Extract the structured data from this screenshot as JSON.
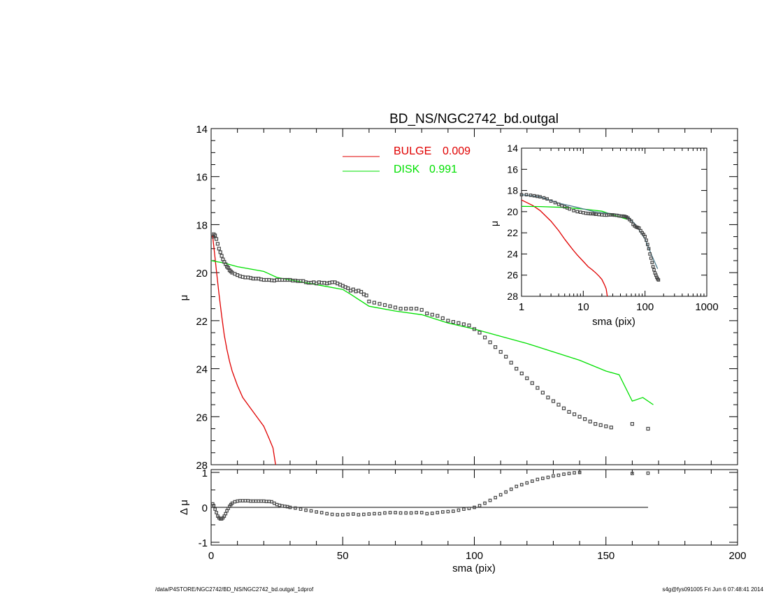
{
  "chart_data": [
    {
      "type": "scatter",
      "title": "BD_NS/NGC2742_bd.outgal",
      "ylabel": "μ",
      "xlim": [
        0,
        200
      ],
      "ylim": [
        28,
        14
      ],
      "yticks": [
        14,
        16,
        18,
        20,
        22,
        24,
        26,
        28
      ],
      "legend_placement": "top",
      "legend": [
        {
          "label": "BULGE",
          "value": "0.009",
          "color": "#e00000"
        },
        {
          "label": "DISK",
          "value": "0.991",
          "color": "#00e000"
        }
      ],
      "series": [
        {
          "name": "BULGE",
          "style": "line",
          "color": "#e00000",
          "x": [
            0.5,
            1,
            2,
            3,
            4,
            5,
            6,
            7,
            8,
            10,
            12,
            14,
            16,
            18,
            20,
            22,
            23.5,
            24.5
          ],
          "y": [
            18.4,
            18.9,
            19.9,
            20.9,
            21.8,
            22.6,
            23.2,
            23.7,
            24.1,
            24.7,
            25.2,
            25.5,
            25.8,
            26.1,
            26.4,
            26.9,
            27.3,
            28.0
          ]
        },
        {
          "name": "DISK",
          "style": "line",
          "color": "#00e000",
          "x": [
            0,
            5,
            10,
            20,
            25,
            30,
            40,
            50,
            53,
            60,
            70,
            80,
            90,
            100,
            110,
            120,
            130,
            140,
            150,
            155,
            160,
            164,
            168
          ],
          "y": [
            19.5,
            19.6,
            19.75,
            19.95,
            20.2,
            20.3,
            20.5,
            20.7,
            20.9,
            21.4,
            21.6,
            21.75,
            22.1,
            22.35,
            22.65,
            22.95,
            23.3,
            23.65,
            24.1,
            24.25,
            25.35,
            25.2,
            25.5
          ]
        },
        {
          "name": "data",
          "style": "markers",
          "color": "#444444",
          "x": [
            0.6,
            1,
            1.5,
            2,
            2.5,
            3,
            3.5,
            4,
            4.5,
            5,
            5.5,
            6,
            6.5,
            7,
            7.5,
            8,
            9,
            10,
            11,
            12,
            13,
            14,
            15,
            16,
            17,
            18,
            19,
            20,
            21,
            22,
            23,
            24,
            25,
            26,
            27,
            28,
            29,
            30,
            31,
            32,
            33,
            34,
            35,
            36,
            37,
            38,
            39,
            40,
            41,
            42,
            43,
            44,
            45,
            46,
            47,
            48,
            49,
            50,
            51,
            52,
            53,
            54,
            55,
            56,
            57,
            58,
            59,
            60,
            62,
            64,
            66,
            68,
            70,
            72,
            74,
            76,
            78,
            80,
            82,
            84,
            86,
            88,
            90,
            92,
            94,
            96,
            98,
            100,
            102,
            104,
            106,
            108,
            110,
            112,
            114,
            116,
            118,
            120,
            122,
            124,
            126,
            128,
            130,
            132,
            134,
            136,
            138,
            140,
            142,
            144,
            146,
            148,
            150,
            152,
            160,
            166
          ],
          "y": [
            18.5,
            18.4,
            18.45,
            18.6,
            18.8,
            19.0,
            19.15,
            19.3,
            19.45,
            19.55,
            19.65,
            19.75,
            19.8,
            19.9,
            19.95,
            20.0,
            20.05,
            20.1,
            20.15,
            20.18,
            20.2,
            20.2,
            20.22,
            20.25,
            20.25,
            20.25,
            20.28,
            20.3,
            20.3,
            20.3,
            20.32,
            20.33,
            20.3,
            20.3,
            20.3,
            20.3,
            20.3,
            20.3,
            20.33,
            20.33,
            20.35,
            20.35,
            20.35,
            20.4,
            20.42,
            20.42,
            20.4,
            20.45,
            20.4,
            20.42,
            20.42,
            20.45,
            20.42,
            20.4,
            20.4,
            20.45,
            20.5,
            20.55,
            20.6,
            20.65,
            20.75,
            20.7,
            20.78,
            20.75,
            20.8,
            20.9,
            20.95,
            21.2,
            21.25,
            21.3,
            21.35,
            21.4,
            21.45,
            21.5,
            21.5,
            21.5,
            21.5,
            21.55,
            21.7,
            21.75,
            21.8,
            21.9,
            22.0,
            22.05,
            22.1,
            22.15,
            22.2,
            22.35,
            22.5,
            22.7,
            22.9,
            23.1,
            23.3,
            23.5,
            23.75,
            24.0,
            24.2,
            24.4,
            24.6,
            24.8,
            25.0,
            25.2,
            25.35,
            25.5,
            25.65,
            25.8,
            25.9,
            26.0,
            26.1,
            26.2,
            26.3,
            26.35,
            26.4,
            26.45,
            26.3,
            26.5
          ]
        }
      ]
    },
    {
      "type": "scatter",
      "xlabel": "sma (pix)",
      "ylabel": "Δ μ",
      "xlim": [
        0,
        200
      ],
      "ylim": [
        -1,
        1
      ],
      "xticks": [
        0,
        50,
        100,
        150,
        200
      ],
      "yticks": [
        -1,
        0,
        1
      ],
      "reference_line": {
        "y": 0,
        "x_range": [
          1,
          166
        ]
      },
      "series": [
        {
          "name": "residual",
          "style": "markers",
          "color": "#444444",
          "x": [
            0.6,
            1,
            1.5,
            2,
            2.5,
            3,
            3.5,
            4,
            4.5,
            5,
            5.5,
            6,
            6.5,
            7,
            7.5,
            8,
            9,
            10,
            11,
            12,
            13,
            14,
            15,
            16,
            17,
            18,
            19,
            20,
            21,
            22,
            23,
            24,
            25,
            26,
            27,
            28,
            29,
            30,
            32,
            34,
            36,
            38,
            40,
            42,
            44,
            46,
            48,
            50,
            52,
            54,
            56,
            58,
            60,
            62,
            64,
            66,
            68,
            70,
            72,
            74,
            76,
            78,
            80,
            82,
            84,
            86,
            88,
            90,
            92,
            94,
            96,
            98,
            100,
            102,
            104,
            106,
            108,
            110,
            112,
            114,
            116,
            118,
            120,
            122,
            124,
            126,
            128,
            130,
            132,
            134,
            136,
            138,
            140,
            160,
            166
          ],
          "y": [
            0.1,
            0.05,
            -0.05,
            -0.15,
            -0.25,
            -0.3,
            -0.33,
            -0.33,
            -0.3,
            -0.25,
            -0.18,
            -0.1,
            -0.03,
            0.03,
            0.08,
            0.12,
            0.16,
            0.18,
            0.19,
            0.19,
            0.19,
            0.19,
            0.18,
            0.18,
            0.18,
            0.18,
            0.18,
            0.18,
            0.17,
            0.17,
            0.16,
            0.12,
            0.08,
            0.06,
            0.04,
            0.03,
            0.02,
            0.0,
            -0.02,
            -0.05,
            -0.08,
            -0.1,
            -0.13,
            -0.15,
            -0.18,
            -0.2,
            -0.21,
            -0.21,
            -0.2,
            -0.19,
            -0.21,
            -0.2,
            -0.19,
            -0.18,
            -0.18,
            -0.16,
            -0.15,
            -0.15,
            -0.16,
            -0.16,
            -0.16,
            -0.15,
            -0.15,
            -0.18,
            -0.17,
            -0.15,
            -0.13,
            -0.12,
            -0.11,
            -0.08,
            -0.05,
            -0.03,
            0.0,
            0.05,
            0.12,
            0.2,
            0.28,
            0.36,
            0.44,
            0.52,
            0.6,
            0.65,
            0.7,
            0.75,
            0.8,
            0.83,
            0.86,
            0.9,
            0.92,
            0.95,
            0.97,
            0.99,
            1.0,
            0.97,
            0.98
          ]
        }
      ]
    },
    {
      "type": "scatter",
      "xlabel": "sma (pix)",
      "ylabel": "μ",
      "xscale": "log",
      "xlim": [
        1,
        1000
      ],
      "ylim": [
        28,
        14
      ],
      "xticks": [
        1,
        10,
        100,
        1000
      ],
      "yticks": [
        14,
        16,
        18,
        20,
        22,
        24,
        26,
        28
      ],
      "series": [
        {
          "name": "BULGE",
          "style": "line",
          "color": "#e00000",
          "x": [
            1,
            1.5,
            2,
            3,
            4,
            5,
            6,
            7,
            8,
            10,
            12,
            14,
            16,
            18,
            20,
            22,
            23.5,
            24.5
          ],
          "y": [
            18.9,
            19.4,
            19.9,
            20.9,
            21.8,
            22.6,
            23.2,
            23.7,
            24.1,
            24.7,
            25.2,
            25.5,
            25.8,
            26.1,
            26.4,
            26.9,
            27.3,
            28.0
          ]
        },
        {
          "name": "DISK",
          "style": "line",
          "color": "#00e000",
          "x": [
            1,
            2,
            5,
            10,
            20,
            30,
            50
          ],
          "y": [
            19.5,
            19.52,
            19.6,
            19.75,
            19.95,
            20.3,
            20.7
          ]
        },
        {
          "name": "model",
          "style": "line",
          "color": "#4a7a8a",
          "x": [
            1,
            2,
            4,
            8,
            15,
            30,
            50,
            70,
            100,
            130,
            160
          ],
          "y": [
            18.4,
            18.6,
            19.2,
            19.6,
            20.0,
            20.2,
            20.4,
            21.2,
            22.6,
            24.2,
            25.4
          ]
        },
        {
          "name": "data",
          "style": "markers",
          "color": "#444444",
          "x": [
            1,
            1.2,
            1.4,
            1.6,
            1.8,
            2,
            2.3,
            2.6,
            3,
            3.5,
            4,
            4.5,
            5,
            5.5,
            6,
            7,
            8,
            9,
            10,
            11,
            12,
            13,
            14,
            15,
            16,
            18,
            20,
            22,
            24,
            26,
            28,
            30,
            32,
            35,
            38,
            41,
            44,
            47,
            50,
            53,
            56,
            60,
            64,
            68,
            72,
            76,
            80,
            85,
            90,
            95,
            100,
            105,
            110,
            115,
            120,
            125,
            130,
            135,
            140,
            145,
            150,
            155,
            160,
            165
          ],
          "y": [
            18.4,
            18.4,
            18.45,
            18.5,
            18.55,
            18.6,
            18.7,
            18.8,
            19.0,
            19.15,
            19.3,
            19.45,
            19.55,
            19.65,
            19.75,
            19.9,
            20.0,
            20.05,
            20.1,
            20.15,
            20.18,
            20.2,
            20.2,
            20.22,
            20.25,
            20.28,
            20.3,
            20.32,
            20.33,
            20.3,
            20.3,
            20.3,
            20.33,
            20.35,
            20.4,
            20.42,
            20.42,
            20.45,
            20.5,
            20.6,
            20.75,
            20.9,
            21.2,
            21.35,
            21.45,
            21.5,
            21.55,
            21.8,
            22.0,
            22.15,
            22.35,
            22.7,
            23.1,
            23.5,
            24.0,
            24.4,
            24.8,
            25.2,
            25.5,
            25.8,
            26.0,
            26.2,
            26.35,
            26.45
          ]
        }
      ]
    }
  ],
  "footer": {
    "path": "/data/P4STORE/NGC2742/BD_NS/NGC2742_bd.outgal_1dprof",
    "stamp": "s4g@fys091005  Fri Jun  6 07:48:41 2014"
  },
  "colors": {
    "bulge": "#e00000",
    "disk": "#00e000",
    "data": "#444444",
    "model": "#4a7a8a"
  }
}
